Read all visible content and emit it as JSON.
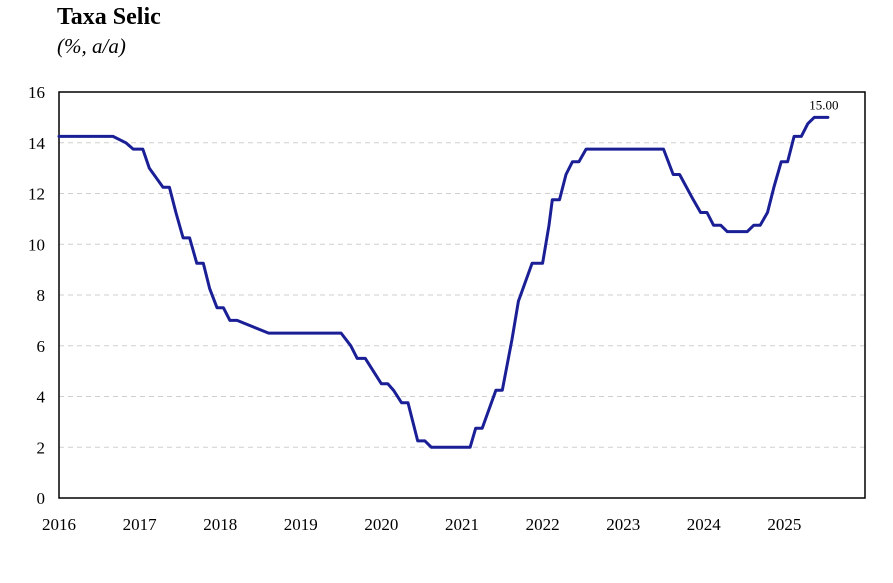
{
  "title": "Taxa Selic",
  "subtitle": "(%, a/a)",
  "chart_data": {
    "type": "line",
    "title": "Taxa Selic",
    "subtitle": "(%, a/a)",
    "xlabel": "",
    "ylabel": "",
    "xlim": [
      2016,
      2026
    ],
    "ylim": [
      0,
      16
    ],
    "yticks": [
      0,
      2,
      4,
      6,
      8,
      10,
      12,
      14,
      16
    ],
    "xtick_labels": [
      "2016",
      "2017",
      "2018",
      "2019",
      "2020",
      "2021",
      "2022",
      "2023",
      "2024",
      "2025"
    ],
    "grid": "horizontal dashed",
    "line_color": "#1a1f96",
    "series": [
      {
        "x": [
          2016.0,
          2016.67,
          2016.83,
          2016.92,
          2017.04,
          2017.12,
          2017.29,
          2017.37,
          2017.45,
          2017.54,
          2017.62,
          2017.71,
          2017.79,
          2017.87,
          2017.96,
          2018.04,
          2018.12,
          2018.21,
          2018.6,
          2019.2,
          2019.5,
          2019.62,
          2019.7,
          2019.8,
          2019.9,
          2020.0,
          2020.08,
          2020.15,
          2020.25,
          2020.33,
          2020.45,
          2020.54,
          2020.62,
          2021.1,
          2021.17,
          2021.25,
          2021.42,
          2021.5,
          2021.62,
          2021.7,
          2021.87,
          2022.0,
          2022.08,
          2022.12,
          2022.21,
          2022.29,
          2022.37,
          2022.45,
          2022.54,
          2022.62,
          2023.0,
          2023.37,
          2023.5,
          2023.62,
          2023.7,
          2023.87,
          2023.96,
          2024.04,
          2024.12,
          2024.21,
          2024.29,
          2024.37,
          2024.54,
          2024.62,
          2024.7,
          2024.79,
          2024.87,
          2024.96,
          2025.04,
          2025.12,
          2025.21,
          2025.29,
          2025.37,
          2025.45,
          2025.54
        ],
        "y": [
          14.25,
          14.25,
          14.0,
          13.75,
          13.75,
          13.0,
          12.25,
          12.25,
          11.25,
          10.25,
          10.25,
          9.25,
          9.25,
          8.25,
          7.5,
          7.5,
          7.0,
          7.0,
          6.5,
          6.5,
          6.5,
          6.0,
          5.5,
          5.5,
          5.0,
          4.5,
          4.5,
          4.25,
          3.75,
          3.75,
          2.25,
          2.25,
          2.0,
          2.0,
          2.75,
          2.75,
          4.25,
          4.25,
          6.25,
          7.75,
          9.25,
          9.25,
          10.75,
          11.75,
          11.75,
          12.75,
          13.25,
          13.25,
          13.75,
          13.75,
          13.75,
          13.75,
          13.75,
          12.75,
          12.75,
          11.75,
          11.25,
          11.25,
          10.75,
          10.75,
          10.5,
          10.5,
          10.5,
          10.75,
          10.75,
          11.25,
          12.25,
          13.25,
          13.25,
          14.25,
          14.25,
          14.75,
          15.0,
          15.0,
          15.0
        ]
      }
    ],
    "annotations": [
      {
        "x": 2025.54,
        "y": 15.0,
        "text": "15.00"
      }
    ]
  }
}
